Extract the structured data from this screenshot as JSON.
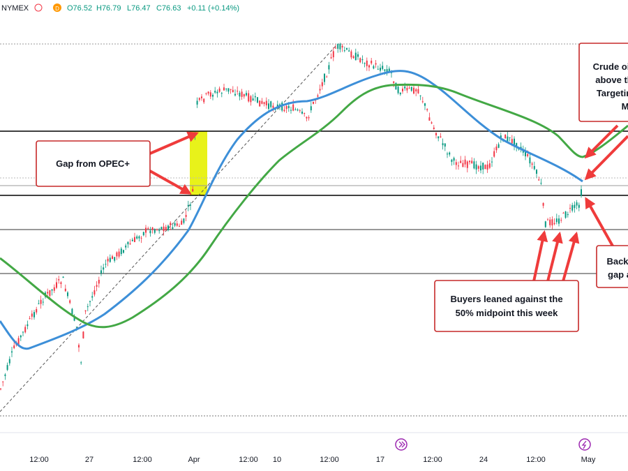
{
  "header": {
    "exchange": "NYMEX",
    "badge": "D",
    "quote": [
      "O76.52",
      "H76.79",
      "L76.47",
      "C76.63",
      "+0.11 (+0.14%)"
    ]
  },
  "x_axis": [
    "12:00",
    "27",
    "12:00",
    "Apr",
    "12:00",
    "10",
    "12:00",
    "17",
    "12:00",
    "24",
    "12:00",
    "May"
  ],
  "annotations": {
    "gap": [
      "Gap from OPEC+"
    ],
    "buyers": [
      "Buyers leaned against the",
      "50% midpoint this week"
    ],
    "crude": [
      "Crude oi",
      "above th",
      "Targetin",
      "M"
    ],
    "back": [
      "Back",
      "gap a"
    ]
  }
}
